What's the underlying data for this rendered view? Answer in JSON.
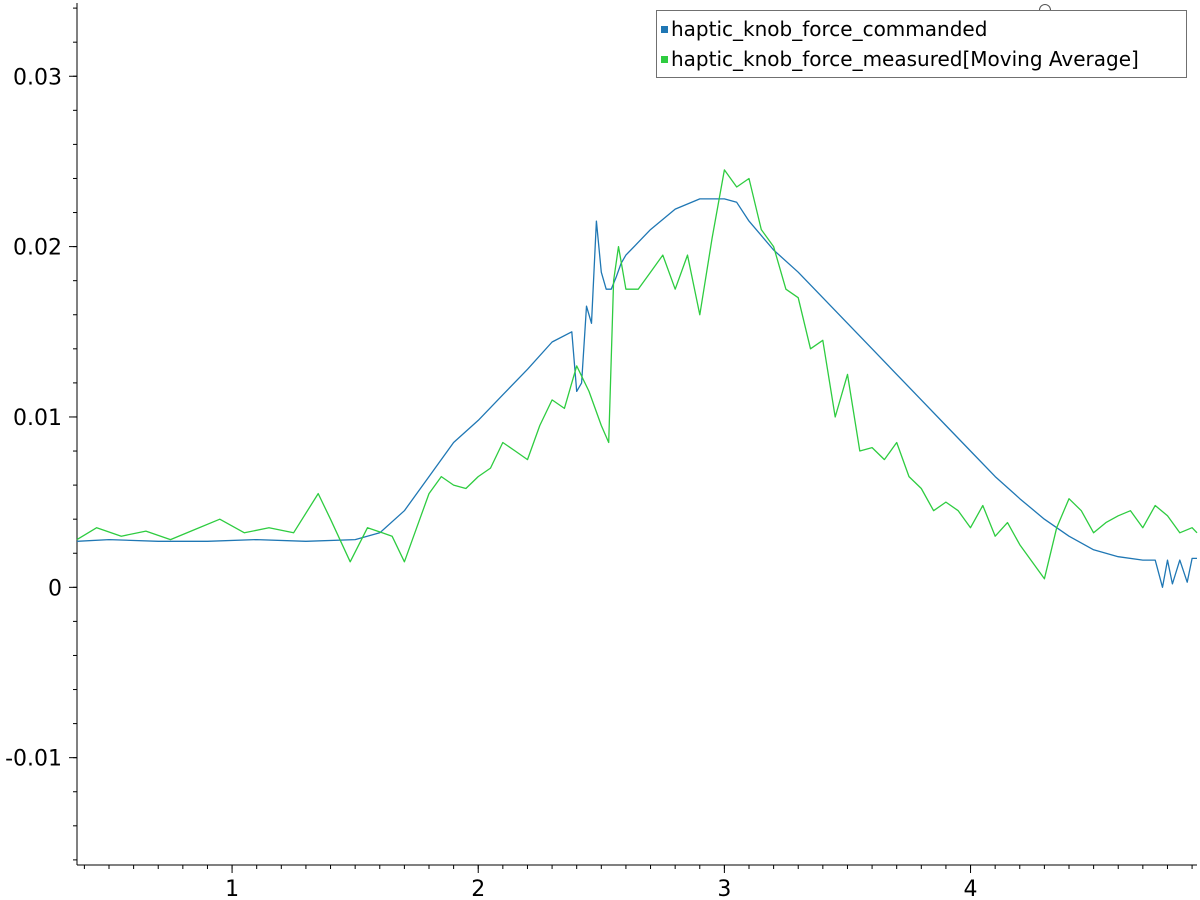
{
  "chart_data": {
    "type": "line",
    "title": "",
    "xlabel": "",
    "ylabel": "",
    "xlim": [
      0.37,
      4.92
    ],
    "ylim": [
      -0.0163,
      0.0343
    ],
    "xticks": [
      1,
      2,
      3,
      4
    ],
    "xtick_labels": [
      "1",
      "2",
      "3",
      "4"
    ],
    "yticks": [
      -0.01,
      0,
      0.01,
      0.02,
      0.03
    ],
    "ytick_labels": [
      "-0.01",
      "0",
      "0.01",
      "0.02",
      "0.03"
    ],
    "grid": false,
    "legend": "top-right",
    "series": [
      {
        "name": "haptic_knob_force_commanded",
        "color": "#1f77b4",
        "x": [
          0.37,
          0.5,
          0.7,
          0.9,
          1.1,
          1.3,
          1.5,
          1.6,
          1.7,
          1.8,
          1.9,
          2.0,
          2.1,
          2.2,
          2.3,
          2.38,
          2.4,
          2.42,
          2.44,
          2.46,
          2.48,
          2.5,
          2.52,
          2.54,
          2.56,
          2.58,
          2.6,
          2.7,
          2.8,
          2.9,
          3.0,
          3.05,
          3.1,
          3.2,
          3.3,
          3.4,
          3.5,
          3.6,
          3.7,
          3.8,
          3.9,
          4.0,
          4.1,
          4.2,
          4.3,
          4.4,
          4.5,
          4.6,
          4.7,
          4.75,
          4.78,
          4.8,
          4.82,
          4.85,
          4.88,
          4.9,
          4.92
        ],
        "y": [
          0.0027,
          0.0028,
          0.0027,
          0.0027,
          0.0028,
          0.0027,
          0.0028,
          0.0032,
          0.0045,
          0.0065,
          0.0085,
          0.0098,
          0.0113,
          0.0128,
          0.0144,
          0.015,
          0.0115,
          0.012,
          0.0165,
          0.0155,
          0.0215,
          0.0185,
          0.0175,
          0.0175,
          0.0182,
          0.019,
          0.0195,
          0.021,
          0.0222,
          0.0228,
          0.0228,
          0.0226,
          0.0215,
          0.0198,
          0.0185,
          0.017,
          0.0155,
          0.014,
          0.0125,
          0.011,
          0.0095,
          0.008,
          0.0065,
          0.0052,
          0.004,
          0.003,
          0.0022,
          0.0018,
          0.0016,
          0.0016,
          0.0,
          0.0016,
          0.0002,
          0.0016,
          0.0003,
          0.0017,
          0.0017
        ]
      },
      {
        "name": "haptic_knob_force_measured[Moving Average]",
        "color": "#2ecc40",
        "x": [
          0.37,
          0.45,
          0.55,
          0.65,
          0.75,
          0.85,
          0.95,
          1.05,
          1.15,
          1.25,
          1.35,
          1.4,
          1.48,
          1.55,
          1.65,
          1.7,
          1.75,
          1.8,
          1.85,
          1.9,
          1.95,
          2.0,
          2.05,
          2.1,
          2.15,
          2.2,
          2.25,
          2.3,
          2.35,
          2.4,
          2.45,
          2.5,
          2.53,
          2.55,
          2.57,
          2.6,
          2.65,
          2.7,
          2.75,
          2.8,
          2.85,
          2.9,
          2.95,
          3.0,
          3.05,
          3.1,
          3.15,
          3.2,
          3.25,
          3.3,
          3.35,
          3.4,
          3.45,
          3.5,
          3.55,
          3.6,
          3.65,
          3.7,
          3.75,
          3.8,
          3.85,
          3.9,
          3.95,
          4.0,
          4.05,
          4.1,
          4.15,
          4.2,
          4.25,
          4.3,
          4.35,
          4.4,
          4.45,
          4.5,
          4.55,
          4.6,
          4.65,
          4.7,
          4.75,
          4.8,
          4.85,
          4.9,
          4.92
        ],
        "y": [
          0.0028,
          0.0035,
          0.003,
          0.0033,
          0.0028,
          0.0034,
          0.004,
          0.0032,
          0.0035,
          0.0032,
          0.0055,
          0.004,
          0.0015,
          0.0035,
          0.003,
          0.0015,
          0.0035,
          0.0055,
          0.0065,
          0.006,
          0.0058,
          0.0065,
          0.007,
          0.0085,
          0.008,
          0.0075,
          0.0095,
          0.011,
          0.0105,
          0.013,
          0.0115,
          0.0095,
          0.0085,
          0.018,
          0.02,
          0.0175,
          0.0175,
          0.0185,
          0.0195,
          0.0175,
          0.0195,
          0.016,
          0.0205,
          0.0245,
          0.0235,
          0.024,
          0.021,
          0.02,
          0.0175,
          0.017,
          0.014,
          0.0145,
          0.01,
          0.0125,
          0.008,
          0.0082,
          0.0075,
          0.0085,
          0.0065,
          0.0058,
          0.0045,
          0.005,
          0.0045,
          0.0035,
          0.0048,
          0.003,
          0.0038,
          0.0025,
          0.0015,
          0.0005,
          0.0035,
          0.0052,
          0.0045,
          0.0032,
          0.0038,
          0.0042,
          0.0045,
          0.0035,
          0.0048,
          0.0042,
          0.0032,
          0.0035,
          0.0032
        ]
      }
    ]
  },
  "legend": {
    "entries": [
      {
        "label": "haptic_knob_force_commanded",
        "color": "#1f77b4"
      },
      {
        "label": "haptic_knob_force_measured[Moving Average]",
        "color": "#2ecc40"
      }
    ]
  }
}
